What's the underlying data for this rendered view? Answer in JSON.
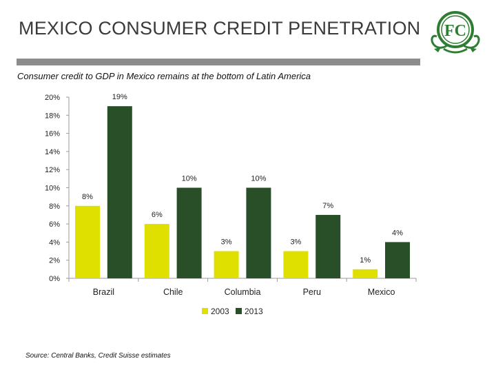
{
  "header": {
    "title": "MEXICO CONSUMER CREDIT PENETRATION"
  },
  "subtitle": "Consumer credit to GDP in Mexico remains at the bottom of Latin America",
  "footer": {
    "source": "Source: Central Banks, Credit Suisse estimates"
  },
  "logo": {
    "name": "fc-monogram-logo"
  },
  "colors": {
    "s2003": "#dfe000",
    "s2013": "#284f27",
    "rule": "#8c8c8c",
    "logo": "#2e7d32"
  },
  "chart_data": {
    "type": "bar",
    "title": "",
    "xlabel": "",
    "ylabel": "",
    "categories": [
      "Brazil",
      "Chile",
      "Columbia",
      "Peru",
      "Mexico"
    ],
    "series": [
      {
        "name": "2003",
        "values": [
          8,
          6,
          3,
          3,
          1
        ],
        "labels": [
          "8%",
          "6%",
          "3%",
          "3%",
          "1%"
        ]
      },
      {
        "name": "2013",
        "values": [
          19,
          10,
          10,
          7,
          4
        ],
        "labels": [
          "19%",
          "10%",
          "10%",
          "7%",
          "4%"
        ]
      }
    ],
    "ylim": [
      0,
      20
    ],
    "yticks": [
      0,
      2,
      4,
      6,
      8,
      10,
      12,
      14,
      16,
      18,
      20
    ],
    "ytick_labels": [
      "0%",
      "2%",
      "4%",
      "6%",
      "8%",
      "10%",
      "12%",
      "14%",
      "16%",
      "18%",
      "20%"
    ],
    "grid": false,
    "legend": "bottom-center"
  }
}
